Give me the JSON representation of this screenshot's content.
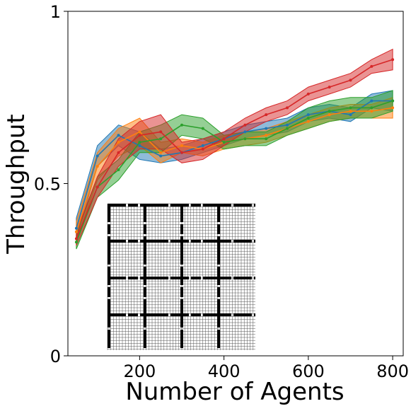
{
  "chart_data": {
    "type": "line",
    "title": "",
    "xlabel": "Number of Agents",
    "ylabel": "Throughput",
    "xlim": [
      30,
      825
    ],
    "ylim": [
      0,
      1
    ],
    "xticks": [
      200,
      400,
      600,
      800
    ],
    "xtick_labels": [
      "200",
      "400",
      "600",
      "800"
    ],
    "yticks": [
      0,
      0.5,
      1
    ],
    "ytick_labels": [
      "0",
      "0.5",
      "1"
    ],
    "grid": false,
    "legend": "none",
    "inset": "grid-map",
    "x": [
      50,
      100,
      150,
      200,
      250,
      300,
      350,
      400,
      450,
      500,
      550,
      600,
      650,
      700,
      750,
      800
    ],
    "series": [
      {
        "color": "#1f77b4",
        "values": [
          0.37,
          0.58,
          0.64,
          0.61,
          0.58,
          0.59,
          0.61,
          0.63,
          0.65,
          0.66,
          0.67,
          0.7,
          0.71,
          0.7,
          0.74,
          0.74
        ],
        "band": [
          0.03,
          0.03,
          0.03,
          0.04,
          0.02,
          0.02,
          0.02,
          0.02,
          0.02,
          0.02,
          0.02,
          0.02,
          0.02,
          0.02,
          0.02,
          0.03
        ]
      },
      {
        "color": "#ff7f0e",
        "values": [
          0.36,
          0.55,
          0.62,
          0.65,
          0.59,
          0.61,
          0.6,
          0.62,
          0.63,
          0.64,
          0.66,
          0.68,
          0.7,
          0.71,
          0.71,
          0.72
        ],
        "band": [
          0.03,
          0.04,
          0.04,
          0.04,
          0.03,
          0.02,
          0.02,
          0.02,
          0.02,
          0.02,
          0.02,
          0.02,
          0.02,
          0.02,
          0.02,
          0.03
        ]
      },
      {
        "color": "#2ca02c",
        "values": [
          0.33,
          0.49,
          0.54,
          0.62,
          0.63,
          0.67,
          0.66,
          0.62,
          0.63,
          0.63,
          0.66,
          0.69,
          0.71,
          0.72,
          0.72,
          0.74
        ],
        "band": [
          0.02,
          0.03,
          0.03,
          0.03,
          0.04,
          0.03,
          0.03,
          0.02,
          0.02,
          0.02,
          0.02,
          0.03,
          0.03,
          0.03,
          0.03,
          0.03
        ]
      },
      {
        "color": "#d62728",
        "values": [
          0.34,
          0.49,
          0.59,
          0.64,
          0.65,
          0.59,
          0.6,
          0.63,
          0.67,
          0.7,
          0.72,
          0.76,
          0.78,
          0.8,
          0.84,
          0.86
        ],
        "band": [
          0.02,
          0.03,
          0.04,
          0.04,
          0.05,
          0.03,
          0.03,
          0.02,
          0.02,
          0.02,
          0.02,
          0.02,
          0.02,
          0.02,
          0.02,
          0.03
        ]
      }
    ]
  }
}
